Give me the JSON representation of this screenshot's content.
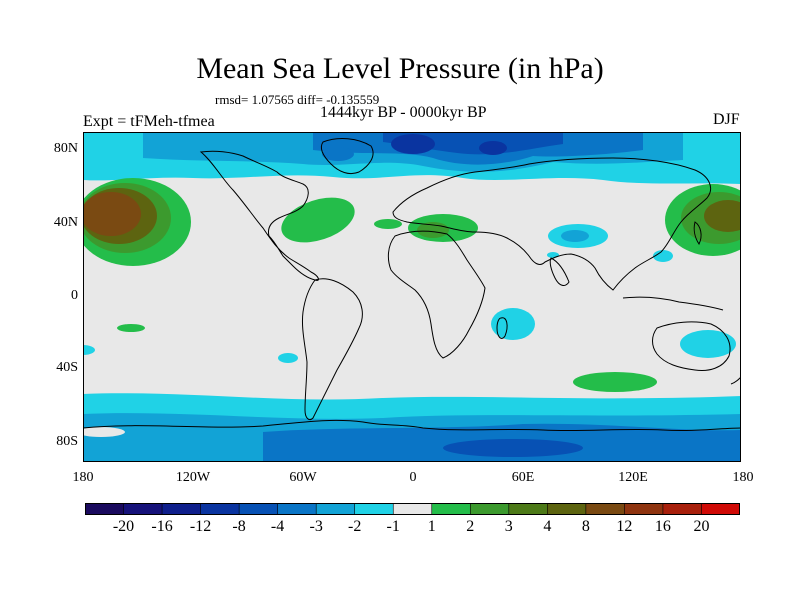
{
  "title": "Mean Sea Level Pressure (in hPa)",
  "stats": "rmsd= 1.07565 diff= -0.135559",
  "experiment_label": "Expt = tFMeh-tfmea",
  "period_label": "1444kyr BP - 0000kyr BP",
  "season_label": "DJF",
  "latitude_ticks": [
    "80N",
    "40N",
    "0",
    "40S",
    "80S"
  ],
  "longitude_ticks": [
    "180",
    "120W",
    "60W",
    "0",
    "60E",
    "120E",
    "180"
  ],
  "colorbar": {
    "labels": [
      "-20",
      "-16",
      "-12",
      "-8",
      "-4",
      "-3",
      "-2",
      "-1",
      "1",
      "2",
      "3",
      "4",
      "8",
      "12",
      "16",
      "20"
    ],
    "colors": [
      "#1a0a5e",
      "#16127a",
      "#0f1f8c",
      "#0a34a0",
      "#0751b4",
      "#0a75c6",
      "#12a3d6",
      "#20d2e6",
      "#e8e8e8",
      "#24bd4a",
      "#3c9a2e",
      "#4d7a18",
      "#5d6410",
      "#7a4a12",
      "#8f3410",
      "#a8200c",
      "#d00a06"
    ]
  },
  "chart_data": {
    "type": "heatmap",
    "title": "Mean Sea Level Pressure (in hPa)",
    "subtitle": "rmsd= 1.07565 diff= -0.135559",
    "units": "hPa",
    "x_range": [
      -180,
      180
    ],
    "y_range": [
      -90,
      90
    ],
    "contour_levels": [
      -20,
      -16,
      -12,
      -8,
      -4,
      -3,
      -2,
      -1,
      1,
      2,
      3,
      4,
      8,
      12,
      16,
      20
    ],
    "anomaly_regions": [
      {
        "name": "North Pacific high",
        "lon": -160,
        "lat": 40,
        "class": 8,
        "note": "peaks 4 to 8 hPa, ring of 1-4"
      },
      {
        "name": "NW Pacific high",
        "lon": 165,
        "lat": 38,
        "class": 4,
        "note": "3 to 8 hPa"
      },
      {
        "name": "North Atlantic",
        "lon": -40,
        "lat": 42,
        "class": 2
      },
      {
        "name": "Mediterranean",
        "lon": 15,
        "lat": 38,
        "class": 2
      },
      {
        "name": "Arctic low",
        "lon": 0,
        "lat": 80,
        "class": -8,
        "note": "down to -8 hPa"
      },
      {
        "name": "Central Asia low",
        "lon": 75,
        "lat": 32,
        "class": -3
      },
      {
        "name": "Southern Ocean high",
        "lon": 80,
        "lat": -48,
        "class": 2
      },
      {
        "name": "Southern Ocean ring",
        "lon": 0,
        "lat": -62,
        "class": -2
      },
      {
        "name": "Antarctica",
        "lon": 0,
        "lat": -80,
        "class": -3
      }
    ]
  }
}
